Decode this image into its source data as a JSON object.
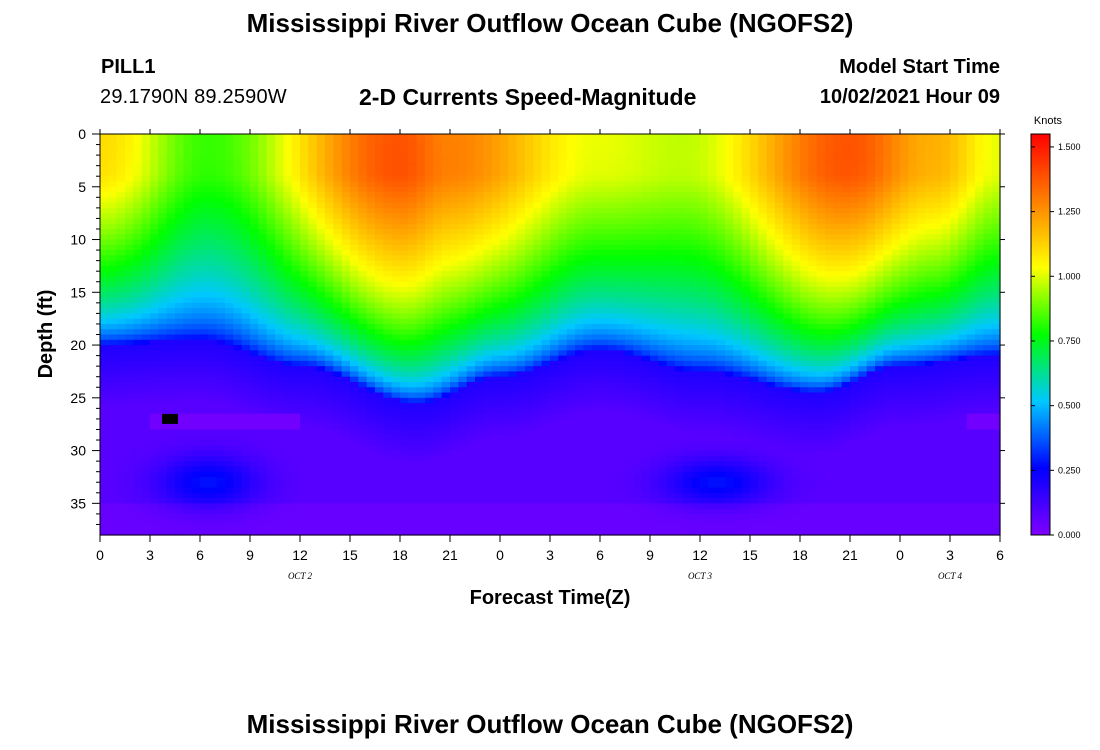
{
  "header": {
    "title": "Mississippi River Outflow Ocean Cube (NGOFS2)",
    "station": "PILL1",
    "coords": "29.1790N  89.2590W",
    "subtitle": "2-D Currents Speed-Magnitude",
    "model_start_label": "Model Start Time",
    "model_start_value": "10/02/2021 Hour 09"
  },
  "footer": {
    "title": "Mississippi River Outflow Ocean Cube (NGOFS2)"
  },
  "chart_data": {
    "type": "heatmap",
    "title": "2-D Currents Speed-Magnitude",
    "xlabel": "Forecast Time(Z)",
    "ylabel": "Depth (ft)",
    "x_tick_labels": [
      "0",
      "3",
      "6",
      "9",
      "12",
      "15",
      "18",
      "21",
      "0",
      "3",
      "6",
      "9",
      "12",
      "15",
      "18",
      "21",
      "0",
      "3",
      "6"
    ],
    "x_hours": [
      0,
      54
    ],
    "date_labels": [
      {
        "label": "OCT 2",
        "hour": 12
      },
      {
        "label": "OCT 3",
        "hour": 36
      },
      {
        "label": "OCT 4",
        "hour": 51
      }
    ],
    "y_tick_labels": [
      "0",
      "5",
      "10",
      "15",
      "20",
      "25",
      "30",
      "35"
    ],
    "y_ticks": [
      0,
      5,
      10,
      15,
      20,
      25,
      30,
      35
    ],
    "ylim": [
      0,
      38
    ],
    "y_inverted": true,
    "colorbar": {
      "label": "Knots",
      "tick_labels": [
        "0.000",
        "0.250",
        "0.500",
        "0.750",
        "1.000",
        "1.250",
        "1.500"
      ],
      "range": [
        0,
        1.55
      ],
      "colors": [
        "#8000ff",
        "#0000ff",
        "#00c8ff",
        "#00ff00",
        "#ffff00",
        "#ff8000",
        "#ff0000"
      ]
    },
    "surface_speed_at_hour": [
      {
        "hour": 0,
        "knots": 1.2
      },
      {
        "hour": 6.5,
        "knots": 0.9
      },
      {
        "hour": 18,
        "knots": 1.5
      },
      {
        "hour": 21,
        "knots": 1.4
      },
      {
        "hour": 30,
        "knots": 1.1
      },
      {
        "hour": 35,
        "knots": 1.05
      },
      {
        "hour": 45,
        "knots": 1.5
      },
      {
        "hour": 50,
        "knots": 1.3
      },
      {
        "hour": 54,
        "knots": 1.1
      }
    ],
    "zero_speed_cell": {
      "hour": 4.2,
      "depth_ft": 27
    }
  }
}
